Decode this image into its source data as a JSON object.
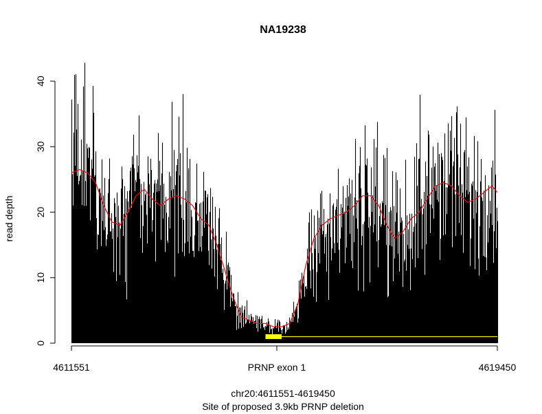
{
  "chart_data": {
    "type": "area",
    "title": "NA19238",
    "ylabel": "read depth",
    "xlabel_line1": "chr20:4611551-4619450",
    "xlabel_line2": "Site of proposed 3.9kb PRNP deletion",
    "xlim": [
      4611551,
      4619450
    ],
    "ylim": [
      0,
      40
    ],
    "y_ticks": [
      0,
      10,
      20,
      30,
      40
    ],
    "x_tick_labels": [
      {
        "x": 4611551,
        "label": "4611551"
      },
      {
        "x": 4615360,
        "label": "PRNP exon 1"
      },
      {
        "x": 4619450,
        "label": "4619450"
      }
    ],
    "exon_marker": {
      "start": 4615150,
      "end": 4615450,
      "color": "#ffff00"
    },
    "deletion_line": {
      "start": 4615150,
      "end": 4619450,
      "y": 1.0,
      "color": "#ffff00"
    },
    "depth_color": "#000000",
    "smooth_color": "#ff0000",
    "smooth_series": {
      "name": "",
      "x": [
        4611551,
        4611700,
        4611850,
        4612000,
        4612150,
        4612300,
        4612450,
        4612600,
        4612750,
        4612900,
        4613050,
        4613200,
        4613350,
        4613500,
        4613650,
        4613800,
        4613950,
        4614100,
        4614250,
        4614400,
        4614550,
        4614700,
        4614850,
        4615000,
        4615150,
        4615300,
        4615450,
        4615600,
        4615750,
        4615900,
        4616050,
        4616200,
        4616350,
        4616500,
        4616650,
        4616800,
        4616950,
        4617100,
        4617250,
        4617400,
        4617550,
        4617700,
        4617850,
        4618000,
        4618150,
        4618300,
        4618450,
        4618600,
        4618750,
        4618900,
        4619050,
        4619200,
        4619350,
        4619450
      ],
      "values": [
        26,
        26.5,
        26,
        24.5,
        21,
        18.5,
        18,
        20,
        22.5,
        23.5,
        22,
        21,
        22,
        22.5,
        22,
        21,
        19,
        18,
        15,
        11,
        7,
        4,
        3.5,
        3,
        3,
        2.5,
        2.5,
        3,
        6,
        12,
        16,
        18,
        19,
        19.5,
        20,
        21,
        22.5,
        22.5,
        21,
        18,
        16,
        17,
        19,
        20,
        22,
        24,
        24.5,
        24,
        22.5,
        21.5,
        22,
        23,
        24,
        23
      ]
    }
  }
}
